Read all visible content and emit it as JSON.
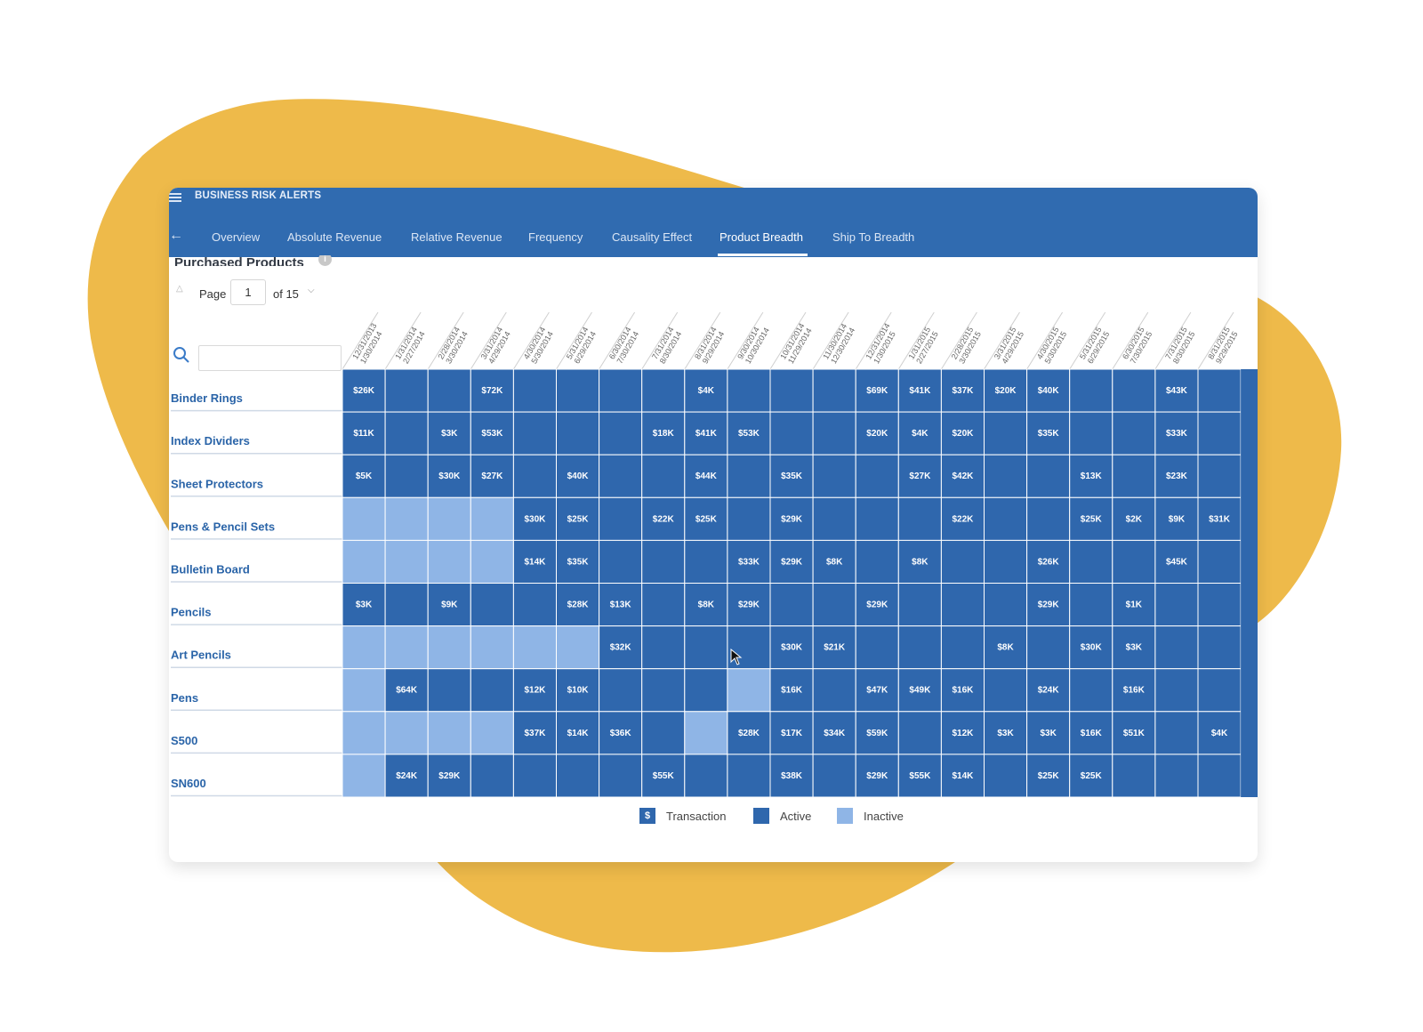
{
  "app": {
    "title": "BUSINESS RISK ALERTS"
  },
  "tabs": [
    {
      "label": "Overview",
      "active": false
    },
    {
      "label": "Absolute Revenue",
      "active": false
    },
    {
      "label": "Relative Revenue",
      "active": false
    },
    {
      "label": "Frequency",
      "active": false
    },
    {
      "label": "Causality Effect",
      "active": false
    },
    {
      "label": "Product Breadth",
      "active": true
    },
    {
      "label": "Ship To Breadth",
      "active": false
    }
  ],
  "section": {
    "title": "Purchased Products"
  },
  "pager": {
    "page_label": "Page",
    "current_page": "1",
    "of_label": "of 15"
  },
  "search": {
    "value": ""
  },
  "colors": {
    "active": "#2f67ad",
    "inactive": "#8fb5e6",
    "header": "#306bb0",
    "accent": "#eeba4a"
  },
  "chart_data": {
    "type": "heatmap",
    "columns": [
      "12/31/2013 1/30/2014",
      "1/31/2014 2/27/2014",
      "2/28/2014 3/30/2014",
      "3/31/2014 4/29/2014",
      "4/30/2014 5/30/2014",
      "5/31/2014 6/29/2014",
      "6/30/2014 7/30/2014",
      "7/31/2014 8/30/2014",
      "8/31/2014 9/29/2014",
      "9/30/2014 10/30/2014",
      "10/31/2014 11/29/2014",
      "11/30/2014 12/30/2014",
      "12/31/2014 1/30/2015",
      "1/31/2015 2/27/2015",
      "2/28/2015 3/30/2015",
      "3/31/2015 4/29/2015",
      "4/30/2015 5/30/2015",
      "5/31/2015 6/29/2015",
      "6/30/2015 7/30/2015",
      "7/31/2015 8/30/2015",
      "8/31/2015 9/29/2015"
    ],
    "rows": [
      {
        "name": "Binder Rings",
        "states": [
          "A",
          "A",
          "A",
          "A",
          "A",
          "A",
          "A",
          "A",
          "A",
          "A",
          "A",
          "A",
          "A",
          "A",
          "A",
          "A",
          "A",
          "A",
          "A",
          "A",
          "A"
        ],
        "values": [
          "$26K",
          "",
          "",
          "$72K",
          "",
          "",
          "",
          "",
          "$4K",
          "",
          "",
          "",
          "$69K",
          "$41K",
          "$37K",
          "$20K",
          "$40K",
          "",
          "",
          "$43K",
          ""
        ]
      },
      {
        "name": "Index Dividers",
        "states": [
          "A",
          "A",
          "A",
          "A",
          "A",
          "A",
          "A",
          "A",
          "A",
          "A",
          "A",
          "A",
          "A",
          "A",
          "A",
          "A",
          "A",
          "A",
          "A",
          "A",
          "A"
        ],
        "values": [
          "$11K",
          "",
          "$3K",
          "$53K",
          "",
          "",
          "",
          "$18K",
          "$41K",
          "$53K",
          "",
          "",
          "$20K",
          "$4K",
          "$20K",
          "",
          "$35K",
          "",
          "",
          "$33K",
          ""
        ]
      },
      {
        "name": "Sheet Protectors",
        "states": [
          "A",
          "A",
          "A",
          "A",
          "A",
          "A",
          "A",
          "A",
          "A",
          "A",
          "A",
          "A",
          "A",
          "A",
          "A",
          "A",
          "A",
          "A",
          "A",
          "A",
          "A"
        ],
        "values": [
          "$5K",
          "",
          "$30K",
          "$27K",
          "",
          "$40K",
          "",
          "",
          "$44K",
          "",
          "$35K",
          "",
          "",
          "$27K",
          "$42K",
          "",
          "",
          "$13K",
          "",
          "$23K",
          ""
        ]
      },
      {
        "name": "Pens & Pencil Sets",
        "states": [
          "I",
          "I",
          "I",
          "I",
          "A",
          "A",
          "A",
          "A",
          "A",
          "A",
          "A",
          "A",
          "A",
          "A",
          "A",
          "A",
          "A",
          "A",
          "A",
          "A",
          "A"
        ],
        "values": [
          "",
          "",
          "",
          "",
          "$30K",
          "$25K",
          "",
          "$22K",
          "$25K",
          "",
          "$29K",
          "",
          "",
          "",
          "$22K",
          "",
          "",
          "$25K",
          "$2K",
          "$9K",
          "$31K"
        ]
      },
      {
        "name": "Bulletin Board",
        "states": [
          "I",
          "I",
          "I",
          "I",
          "A",
          "A",
          "A",
          "A",
          "A",
          "A",
          "A",
          "A",
          "A",
          "A",
          "A",
          "A",
          "A",
          "A",
          "A",
          "A",
          "A"
        ],
        "values": [
          "",
          "",
          "",
          "",
          "$14K",
          "$35K",
          "",
          "",
          "",
          "$33K",
          "$29K",
          "$8K",
          "",
          "$8K",
          "",
          "",
          "$26K",
          "",
          "",
          "$45K",
          ""
        ]
      },
      {
        "name": "Pencils",
        "states": [
          "A",
          "A",
          "A",
          "A",
          "A",
          "A",
          "A",
          "A",
          "A",
          "A",
          "A",
          "A",
          "A",
          "A",
          "A",
          "A",
          "A",
          "A",
          "A",
          "A",
          "A"
        ],
        "values": [
          "$3K",
          "",
          "$9K",
          "",
          "",
          "$28K",
          "$13K",
          "",
          "$8K",
          "$29K",
          "",
          "",
          "$29K",
          "",
          "",
          "",
          "$29K",
          "",
          "$1K",
          "",
          ""
        ]
      },
      {
        "name": "Art Pencils",
        "states": [
          "I",
          "I",
          "I",
          "I",
          "I",
          "I",
          "A",
          "A",
          "A",
          "A",
          "A",
          "A",
          "A",
          "A",
          "A",
          "A",
          "A",
          "A",
          "A",
          "A",
          "A"
        ],
        "values": [
          "",
          "",
          "",
          "",
          "",
          "",
          "$32K",
          "",
          "",
          "",
          "$30K",
          "$21K",
          "",
          "",
          "",
          "$8K",
          "",
          "$30K",
          "$3K",
          "",
          ""
        ]
      },
      {
        "name": "Pens",
        "states": [
          "I",
          "A",
          "A",
          "A",
          "A",
          "A",
          "A",
          "A",
          "A",
          "I",
          "A",
          "A",
          "A",
          "A",
          "A",
          "A",
          "A",
          "A",
          "A",
          "A",
          "A"
        ],
        "values": [
          "",
          "$64K",
          "",
          "",
          "$12K",
          "$10K",
          "",
          "",
          "",
          "",
          "$16K",
          "",
          "$47K",
          "$49K",
          "$16K",
          "",
          "$24K",
          "",
          "$16K",
          "",
          ""
        ]
      },
      {
        "name": "S500",
        "states": [
          "I",
          "I",
          "I",
          "I",
          "A",
          "A",
          "A",
          "A",
          "I",
          "A",
          "A",
          "A",
          "A",
          "A",
          "A",
          "A",
          "A",
          "A",
          "A",
          "A",
          "A"
        ],
        "values": [
          "",
          "",
          "",
          "",
          "$37K",
          "$14K",
          "$36K",
          "",
          "",
          "$28K",
          "$17K",
          "$34K",
          "$59K",
          "",
          "$12K",
          "$3K",
          "$3K",
          "$16K",
          "$51K",
          "",
          "$4K"
        ]
      },
      {
        "name": "SN600",
        "states": [
          "I",
          "A",
          "A",
          "A",
          "A",
          "A",
          "A",
          "A",
          "A",
          "A",
          "A",
          "A",
          "A",
          "A",
          "A",
          "A",
          "A",
          "A",
          "A",
          "A",
          "A"
        ],
        "values": [
          "",
          "$24K",
          "$29K",
          "",
          "",
          "",
          "",
          "$55K",
          "",
          "",
          "$38K",
          "",
          "$29K",
          "$55K",
          "$14K",
          "",
          "$25K",
          "$25K",
          "",
          "",
          ""
        ]
      }
    ]
  },
  "legend": [
    {
      "symbol": "$",
      "label": "Transaction"
    },
    {
      "symbol": "",
      "label": "Active"
    },
    {
      "symbol": "",
      "label": "Inactive"
    }
  ]
}
